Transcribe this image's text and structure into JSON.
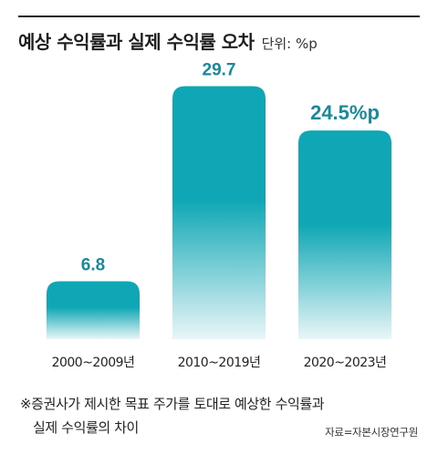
{
  "header": {
    "title": "예상 수익률과 실제 수익률 오차",
    "unit": "단위: %p"
  },
  "colors": {
    "bar_top": "#0fa7b5",
    "bar_bottom": "#e9f6f8",
    "value_label": "#1a8a9a",
    "axis_label": "#222222"
  },
  "chart_data": {
    "type": "bar",
    "categories": [
      "2000~2009년",
      "2010~2019년",
      "2020~2023년"
    ],
    "values": [
      6.8,
      29.7,
      24.5
    ],
    "value_labels": [
      "6.8",
      "29.7",
      "24.5%p"
    ],
    "ylim": [
      0,
      32
    ],
    "grid": false,
    "legend": "none"
  },
  "footnote": {
    "line1": "※증권사가 제시한 목표 주가를 토대로 예상한 수익률과",
    "line2": "실제 수익률의 차이"
  },
  "source": "자료=자본시장연구원"
}
